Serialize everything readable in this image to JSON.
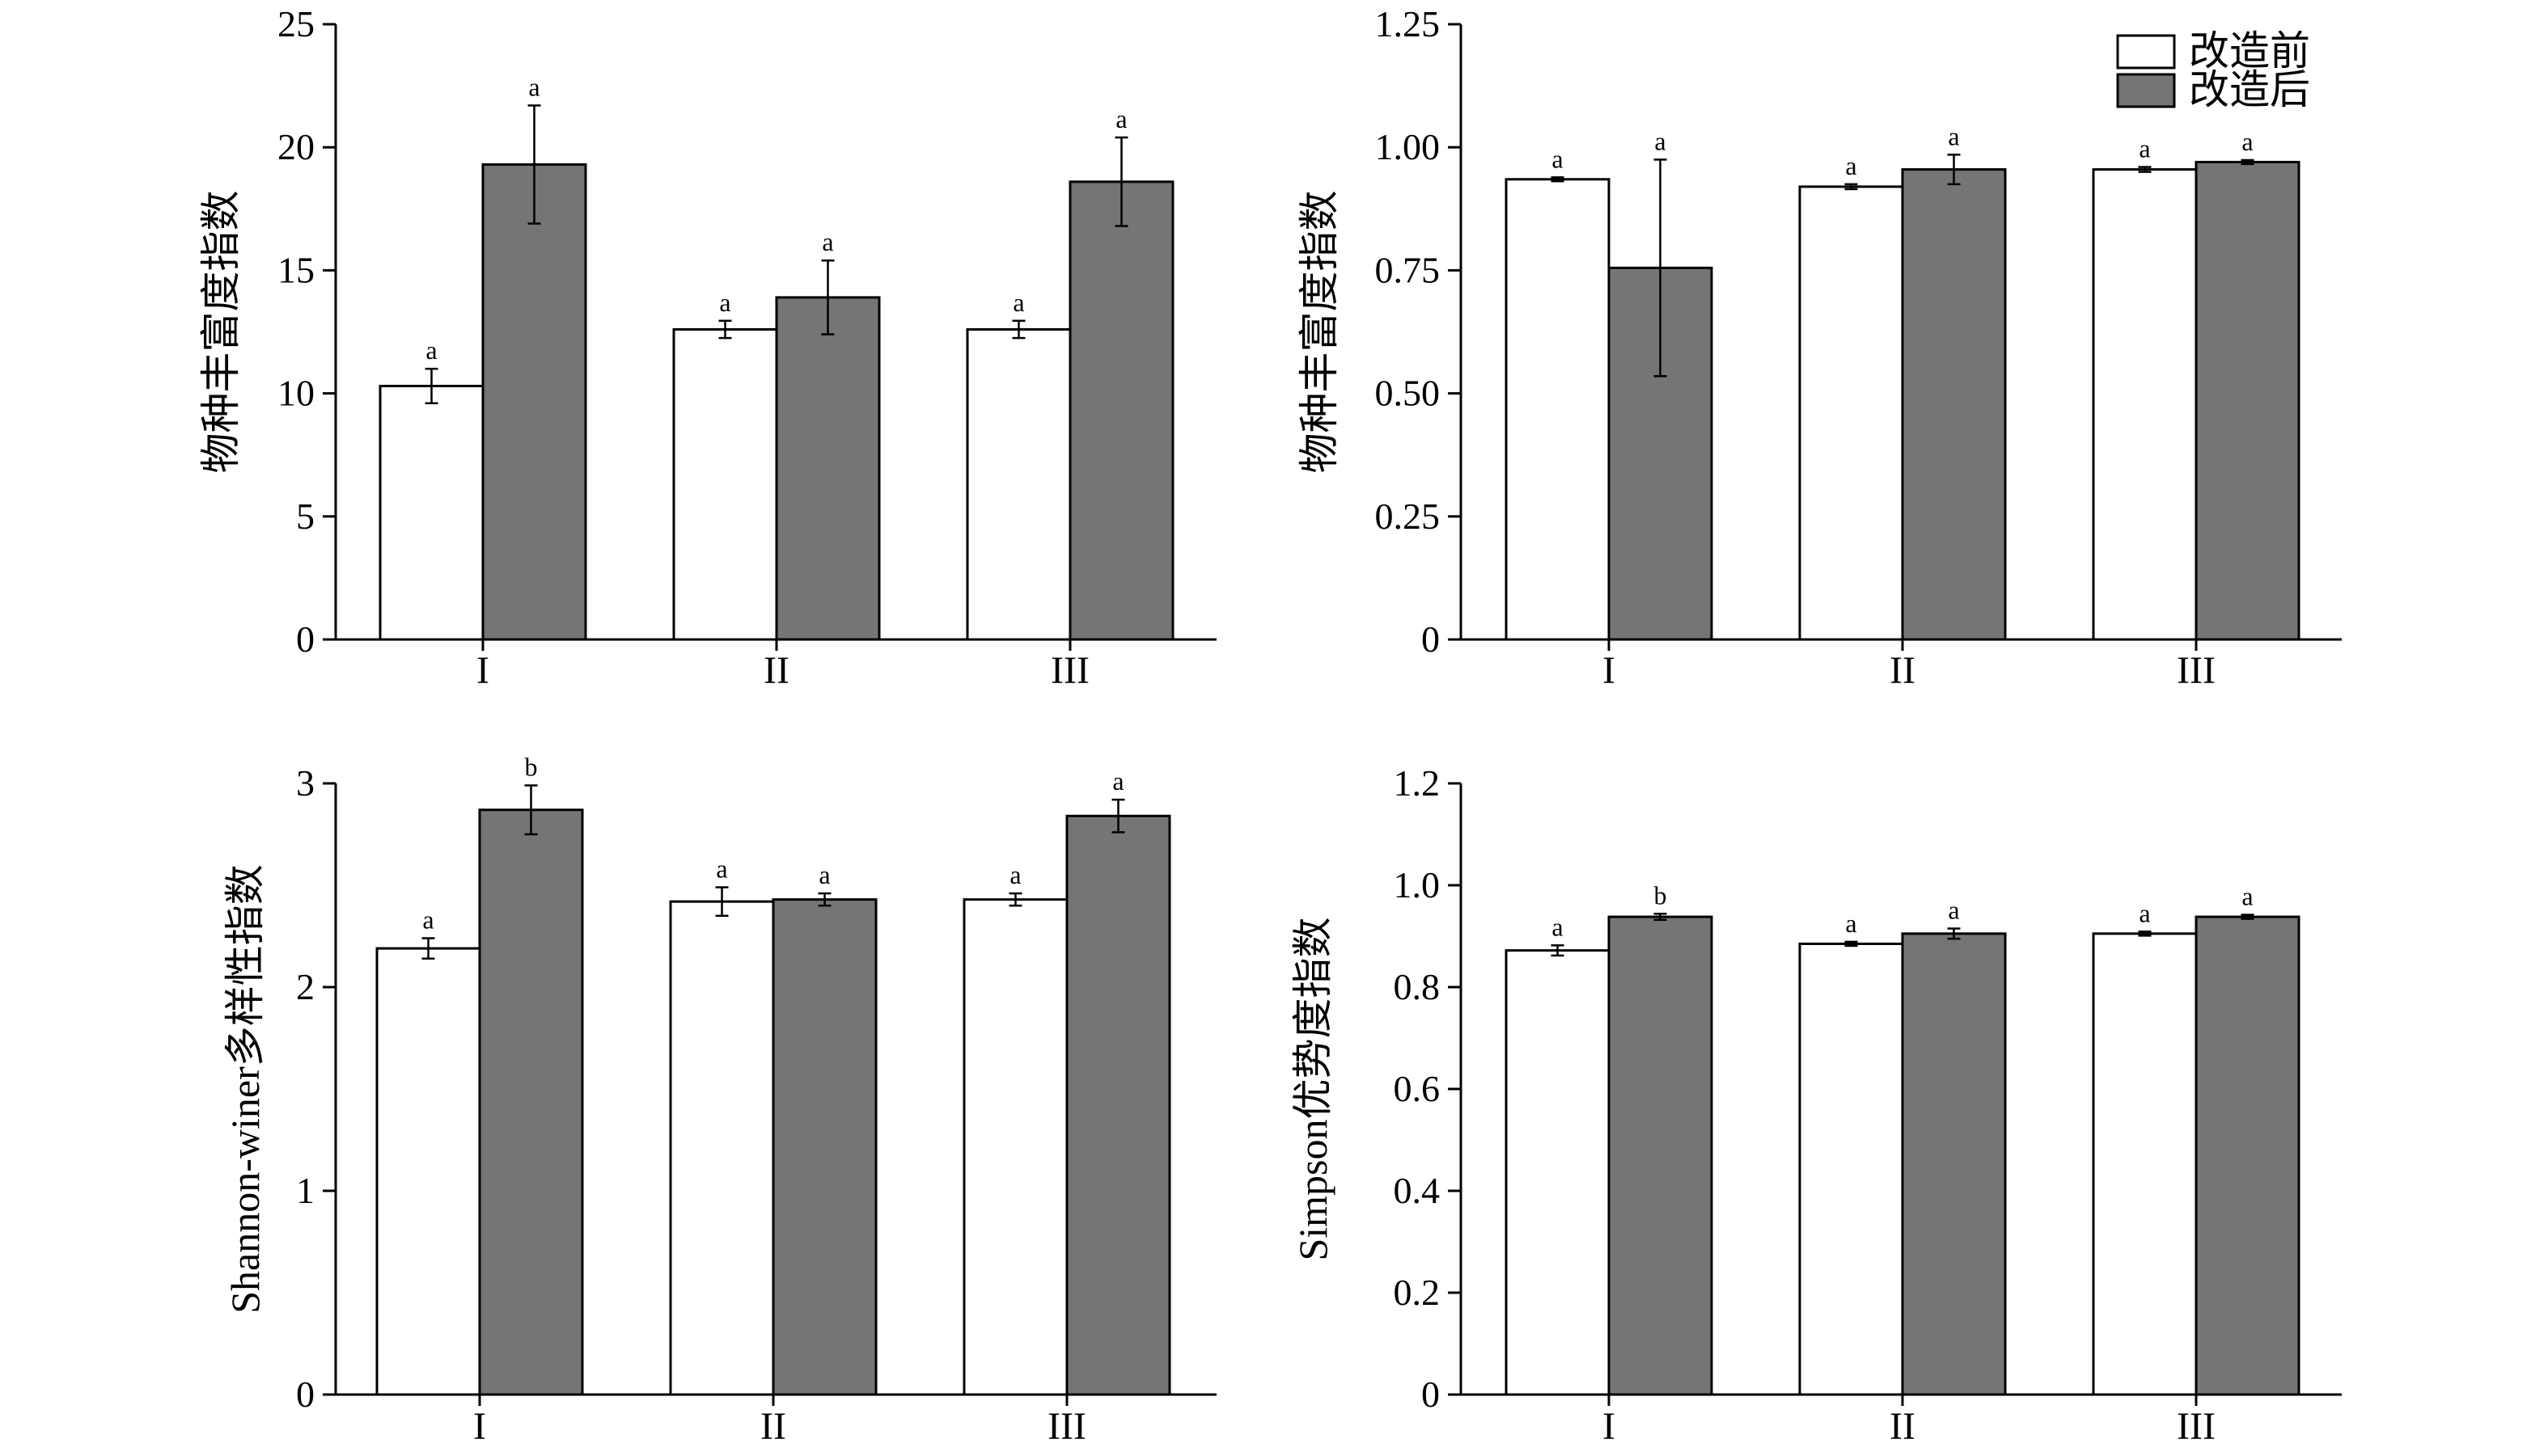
{
  "legend": {
    "before_label": "改造前",
    "after_label": "改造后",
    "before_color": "#ffffff",
    "after_color": "#767474"
  },
  "chart_data": [
    {
      "type": "bar",
      "panel": "top-left",
      "ylabel": "物种丰富度指数",
      "categories": [
        "I",
        "II",
        "III"
      ],
      "ylim": [
        0,
        25
      ],
      "yticks": [
        "0",
        "5",
        "10",
        "15",
        "20",
        "25"
      ],
      "series": [
        {
          "name": "改造前",
          "values": [
            10.3,
            12.6,
            12.6
          ],
          "errors": [
            0.7,
            0.35,
            0.35
          ],
          "sig": [
            "a",
            "a",
            "a"
          ]
        },
        {
          "name": "改造后",
          "values": [
            19.3,
            13.9,
            18.6
          ],
          "errors": [
            2.4,
            1.5,
            1.8
          ],
          "sig": [
            "a",
            "a",
            "a"
          ]
        }
      ],
      "legend_position": "top-right"
    },
    {
      "type": "bar",
      "panel": "top-right",
      "ylabel": "物种丰富度指数",
      "categories": [
        "I",
        "II",
        "III"
      ],
      "ylim": [
        0,
        1.25
      ],
      "yticks": [
        "0",
        "0.25",
        "0.50",
        "0.75",
        "1.00",
        "1.25"
      ],
      "series": [
        {
          "name": "改造前",
          "values": [
            0.935,
            0.92,
            0.955
          ],
          "errors": [
            0.004,
            0.005,
            0.005
          ],
          "sig": [
            "a",
            "a",
            "a"
          ]
        },
        {
          "name": "改造后",
          "values": [
            0.755,
            0.955,
            0.97
          ],
          "errors": [
            0.22,
            0.03,
            0.004
          ],
          "sig": [
            "a",
            "a",
            "a"
          ]
        }
      ],
      "legend_position": "top-right"
    },
    {
      "type": "bar",
      "panel": "bottom-left",
      "ylabel": "Shannon-winer多样性指数",
      "categories": [
        "I",
        "II",
        "III"
      ],
      "ylim": [
        0,
        3
      ],
      "yticks": [
        "0",
        "1",
        "2",
        "3"
      ],
      "series": [
        {
          "name": "改造前",
          "values": [
            2.19,
            2.42,
            2.43
          ],
          "errors": [
            0.05,
            0.07,
            0.03
          ],
          "sig": [
            "a",
            "a",
            "a"
          ]
        },
        {
          "name": "改造后",
          "values": [
            2.87,
            2.43,
            2.84
          ],
          "errors": [
            0.12,
            0.03,
            0.08
          ],
          "sig": [
            "b",
            "a",
            "a"
          ]
        }
      ],
      "legend_position": "top-right"
    },
    {
      "type": "bar",
      "panel": "bottom-right",
      "ylabel": "Simpson优势度指数",
      "categories": [
        "I",
        "II",
        "III"
      ],
      "ylim": [
        0,
        1.2
      ],
      "yticks": [
        "0",
        "0.2",
        "0.4",
        "0.6",
        "0.8",
        "1.0",
        "1.2"
      ],
      "series": [
        {
          "name": "改造前",
          "values": [
            0.872,
            0.885,
            0.905
          ],
          "errors": [
            0.01,
            0.004,
            0.004
          ],
          "sig": [
            "a",
            "a",
            "a"
          ]
        },
        {
          "name": "改造后",
          "values": [
            0.938,
            0.905,
            0.938
          ],
          "errors": [
            0.006,
            0.01,
            0.004
          ],
          "sig": [
            "b",
            "a",
            "a"
          ]
        }
      ],
      "legend_position": "top-right"
    }
  ]
}
